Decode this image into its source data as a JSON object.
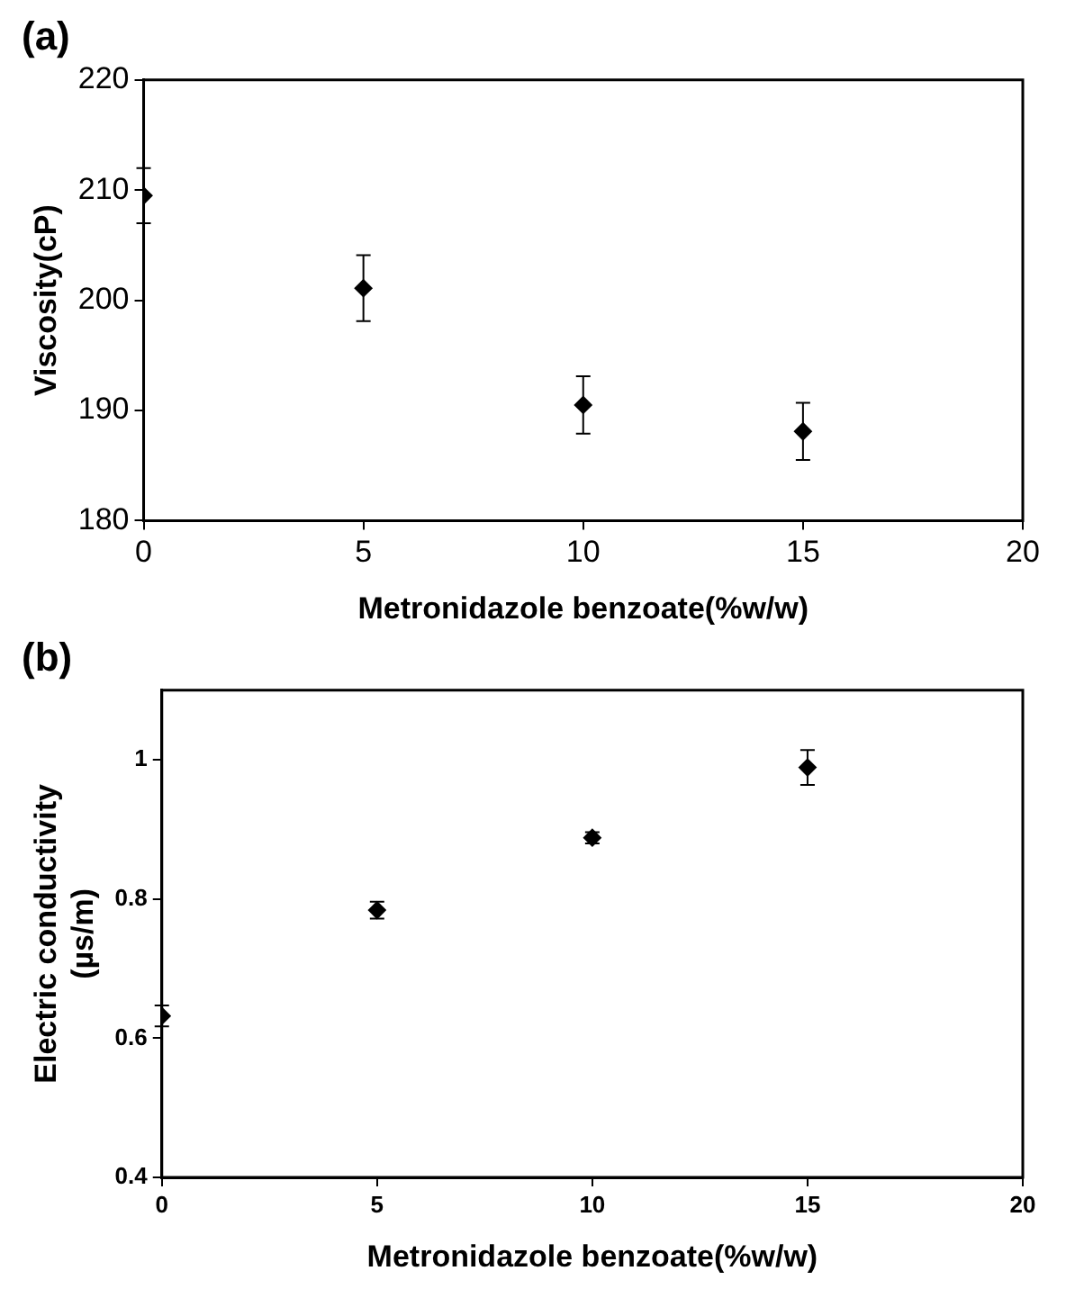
{
  "chart_data": [
    {
      "type": "scatter",
      "title": "(a)",
      "xlabel": "Metronidazole benzoate(%w/w)",
      "ylabel": "Viscosity(cP)",
      "x": [
        0,
        5,
        10,
        15
      ],
      "values": [
        209.5,
        201.1,
        190.5,
        188.1
      ],
      "errors": [
        2.5,
        3,
        2.6,
        2.6
      ],
      "color": "#000000",
      "marker": "diamond",
      "xlim": [
        0,
        20
      ],
      "xticks": [
        0,
        5,
        10,
        15,
        20
      ],
      "ylim": [
        180,
        220
      ],
      "yticks": [
        180,
        190,
        200,
        210,
        220
      ],
      "grid": false,
      "legend": false
    },
    {
      "type": "scatter",
      "title": "(b)",
      "xlabel": "Metronidazole benzoate(%w/w)",
      "ylabel": "Electric conductivity\n(µs/m)",
      "x": [
        0,
        5,
        10,
        15
      ],
      "values": [
        0.632,
        0.784,
        0.888,
        0.989
      ],
      "errors": [
        0.015,
        0.012,
        0.008,
        0.025
      ],
      "color": "#000000",
      "marker": "diamond",
      "xlim": [
        0,
        20
      ],
      "xticks": [
        0,
        5,
        10,
        15,
        20
      ],
      "ylim": [
        0.4,
        1.1
      ],
      "yticks": [
        0.4,
        0.6,
        0.8,
        1
      ],
      "grid": false,
      "legend": false
    }
  ]
}
